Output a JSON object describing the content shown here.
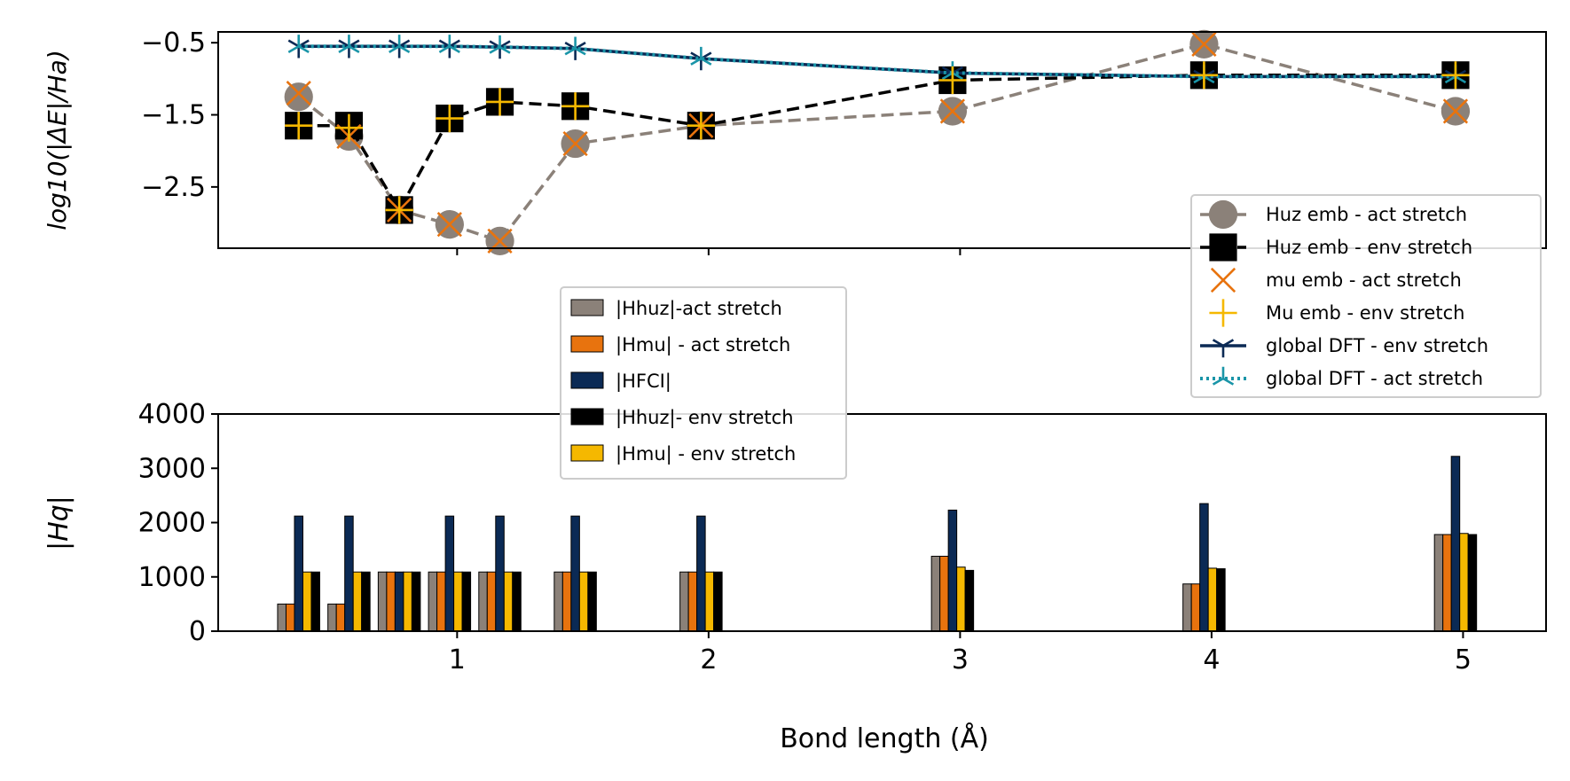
{
  "colors": {
    "huz_act": "#8b8179",
    "huz_env": "#000000",
    "mu_act": "#e8730e",
    "mu_env": "#f5b800",
    "dft_env": "#0b2a55",
    "dft_act": "#1a95a8"
  },
  "labels": {
    "x_title": "Bond length (Å)",
    "top_ylabel": "log10(|ΔE|/Ha)",
    "bottom_ylabel": "|Hq|"
  },
  "chart_data": [
    {
      "type": "line",
      "ylabel": "log10(|ΔE|/Ha)",
      "x": [
        0.74,
        0.94,
        1.14,
        1.34,
        1.54,
        1.84,
        2.34,
        3.34,
        4.34,
        5.34
      ],
      "xlim": [
        0.05,
        5.33
      ],
      "xticks": [
        1,
        2,
        3,
        4,
        5
      ],
      "ylim": [
        -3.35,
        -0.35
      ],
      "yticks": [
        -0.5,
        -1.5,
        -2.5
      ],
      "ytick_labels": [
        "−0.5",
        "−1.5",
        "−2.5"
      ],
      "legend_position": "lower-right",
      "series": [
        {
          "name": "Huz emb - act stretch",
          "color_key": "huz_act",
          "marker": "circle",
          "line": "dashed",
          "x": [
            0.37,
            0.57,
            0.77,
            0.97,
            1.17,
            1.47,
            1.97,
            2.97,
            3.97,
            4.97
          ],
          "values": [
            -1.25,
            -1.8,
            -2.82,
            -3.02,
            -3.25,
            -1.9,
            -1.65,
            -1.45,
            -0.52,
            -1.45
          ]
        },
        {
          "name": "Huz emb - env stretch",
          "color_key": "huz_env",
          "marker": "square",
          "line": "dashed",
          "x": [
            0.37,
            0.57,
            0.77,
            0.97,
            1.17,
            1.47,
            1.97,
            2.97,
            3.97,
            4.97
          ],
          "values": [
            -1.65,
            -1.65,
            -2.82,
            -1.55,
            -1.32,
            -1.38,
            -1.65,
            -1.02,
            -0.95,
            -0.95
          ]
        },
        {
          "name": "mu emb - act stretch",
          "color_key": "mu_act",
          "marker": "x",
          "line": "none",
          "x": [
            0.37,
            0.57,
            0.77,
            0.97,
            1.17,
            1.47,
            1.97,
            2.97,
            3.97,
            4.97
          ],
          "values": [
            -1.2,
            -1.8,
            -2.82,
            -3.02,
            -3.25,
            -1.9,
            -1.65,
            -1.45,
            -0.52,
            -1.45
          ]
        },
        {
          "name": "Mu emb - env stretch",
          "color_key": "mu_env",
          "marker": "plus",
          "line": "none",
          "x": [
            0.37,
            0.57,
            0.77,
            0.97,
            1.17,
            1.47,
            1.97,
            2.97,
            3.97,
            4.97
          ],
          "values": [
            -1.65,
            -1.68,
            -2.82,
            -1.55,
            -1.32,
            -1.38,
            -1.65,
            -1.02,
            -0.95,
            -0.95
          ]
        },
        {
          "name": "global DFT - env stretch",
          "color_key": "dft_env",
          "marker": "tri_down",
          "line": "solid",
          "x": [
            0.37,
            0.57,
            0.77,
            0.97,
            1.17,
            1.47,
            1.97,
            2.97,
            3.97,
            4.97
          ],
          "values": [
            -0.55,
            -0.55,
            -0.55,
            -0.55,
            -0.56,
            -0.58,
            -0.72,
            -0.92,
            -0.97,
            -0.97
          ]
        },
        {
          "name": "global DFT - act stretch",
          "color_key": "dft_act",
          "marker": "tri_up",
          "line": "dotted",
          "x": [
            0.37,
            0.57,
            0.77,
            0.97,
            1.17,
            1.47,
            1.97,
            2.97,
            3.97,
            4.97
          ],
          "values": [
            -0.55,
            -0.55,
            -0.55,
            -0.55,
            -0.56,
            -0.58,
            -0.72,
            -0.92,
            -0.97,
            -0.97
          ]
        }
      ]
    },
    {
      "type": "bar",
      "ylabel": "|Hq|",
      "xlabel": "Bond length (Å)",
      "xlim": [
        0.05,
        5.33
      ],
      "xticks": [
        1,
        2,
        3,
        4,
        5
      ],
      "ylim": [
        0,
        4000
      ],
      "yticks": [
        0,
        1000,
        2000,
        3000,
        4000
      ],
      "legend_position": "upper-center",
      "x": [
        0.37,
        0.57,
        0.77,
        0.97,
        1.17,
        1.47,
        1.97,
        2.97,
        3.97,
        4.97
      ],
      "series": [
        {
          "name": "|Hhuz|-act stretch",
          "color_key": "huz_act",
          "values": [
            500,
            500,
            1090,
            1090,
            1090,
            1090,
            1090,
            1380,
            870,
            1780
          ]
        },
        {
          "name": "|Hmu| - act stretch",
          "color_key": "mu_act",
          "values": [
            500,
            500,
            1090,
            1090,
            1090,
            1090,
            1090,
            1380,
            870,
            1780
          ]
        },
        {
          "name": "|HFCI|",
          "color_key": "dft_env",
          "values": [
            2120,
            2120,
            1090,
            2120,
            2120,
            2120,
            2120,
            2230,
            2350,
            3220
          ]
        },
        {
          "name": "|Hmu| - env stretch",
          "color_key": "mu_env",
          "values": [
            1090,
            1090,
            1090,
            1090,
            1090,
            1090,
            1090,
            1180,
            1160,
            1800
          ]
        },
        {
          "name": "|Hhuz|- env stretch",
          "color_key": "huz_env",
          "values": [
            1090,
            1090,
            1090,
            1090,
            1090,
            1090,
            1090,
            1120,
            1150,
            1780
          ]
        }
      ],
      "legend_order": [
        0,
        1,
        2,
        4,
        3
      ]
    }
  ]
}
